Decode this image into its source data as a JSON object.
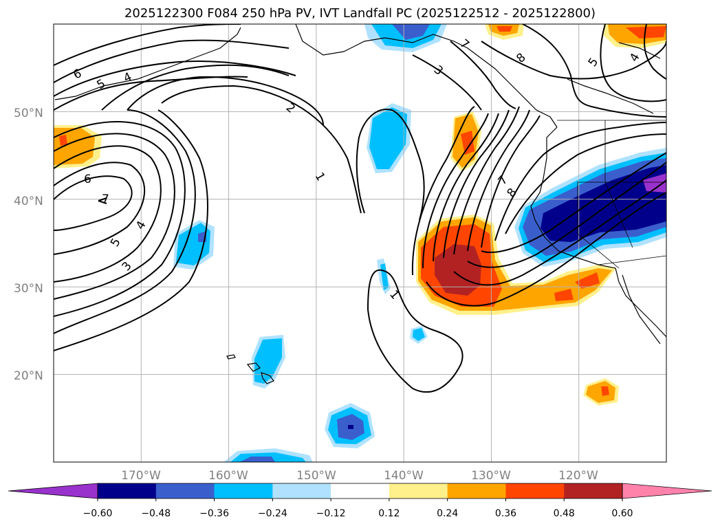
{
  "title": "2025122300 F084 250 hPa PV, IVT Landfall PC (2025122512 - 2025122800)",
  "lat_labels": [
    "50°N",
    "40°N",
    "30°N",
    "20°N"
  ],
  "lon_labels": [
    "170°W",
    "160°W",
    "150°W",
    "140°W",
    "130°W",
    "120°W"
  ],
  "map_extent": {
    "lon_min": -180,
    "lon_max": -110,
    "lat_min": 10,
    "lat_max": 60
  },
  "colorbar": {
    "ticks": [
      "−0.60",
      "−0.48",
      "−0.36",
      "−0.24",
      "−0.12",
      "0.12",
      "0.24",
      "0.36",
      "0.48",
      "0.60"
    ],
    "colors": [
      "#9932cc",
      "#00008b",
      "#3a5fcd",
      "#00bfff",
      "#b0e2ff",
      "#ffffff",
      "#fff08c",
      "#ffa500",
      "#ff4500",
      "#b22222",
      "#ff82ab"
    ]
  },
  "contour_labels": [
    "6",
    "5",
    "4",
    "2",
    "3",
    "7",
    "8",
    "5",
    "4",
    "6",
    "7",
    "1",
    "5",
    "4",
    "3",
    "7",
    "8",
    "1"
  ],
  "colors": {
    "grid": "#b0b0b0",
    "coast": "#000000",
    "contour": "#000000"
  }
}
